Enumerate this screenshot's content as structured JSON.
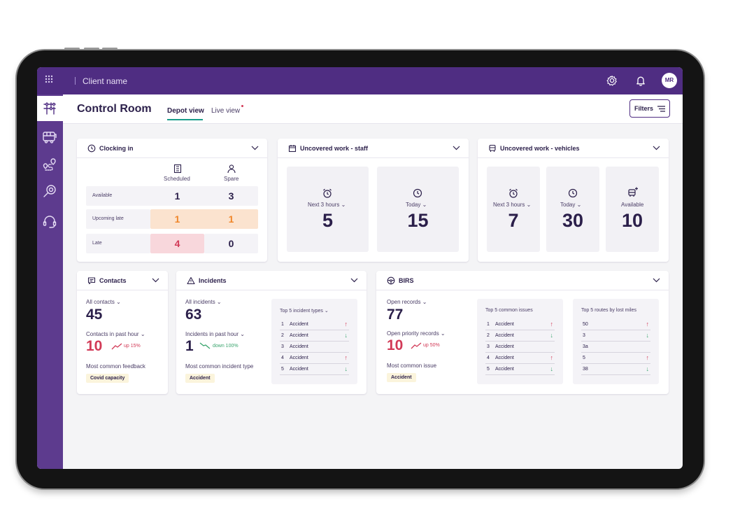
{
  "topbar": {
    "client_name": "Client name",
    "avatar": "MR",
    "icons": [
      "grid-icon",
      "settings-icon",
      "bell-icon"
    ]
  },
  "sidebar": {
    "items": [
      "control-room-icon",
      "bus-icon",
      "route-icon",
      "search-icon",
      "headset-icon"
    ]
  },
  "header": {
    "title": "Control Room",
    "tabs": [
      "Depot view",
      "Live view"
    ],
    "active_tab": "Depot view",
    "filters_label": "Filters"
  },
  "clocking": {
    "title": "Clocking in",
    "col_scheduled": "Scheduled",
    "col_spare": "Spare",
    "rows": [
      {
        "label": "Available",
        "scheduled": "1",
        "spare": "3"
      },
      {
        "label": "Upcoming late",
        "scheduled": "1",
        "spare": "1"
      },
      {
        "label": "Late",
        "scheduled": "4",
        "spare": "0"
      }
    ]
  },
  "staff": {
    "title": "Uncovered work - staff",
    "tiles": [
      {
        "label": "Next 3 hours",
        "value": "5"
      },
      {
        "label": "Today",
        "value": "15"
      }
    ]
  },
  "vehicles": {
    "title": "Uncovered work - vehicles",
    "tiles": [
      {
        "label": "Next 3 hours",
        "value": "7"
      },
      {
        "label": "Today",
        "value": "30"
      },
      {
        "label": "Available",
        "value": "10"
      }
    ]
  },
  "contacts": {
    "title": "Contacts",
    "all_label": "All contacts",
    "all_value": "45",
    "hour_label": "Contacts in past hour",
    "hour_value": "10",
    "trend": "up 15%",
    "feedback_label": "Most common feedback",
    "feedback_tag": "Covid capacity"
  },
  "incidents": {
    "title": "Incidents",
    "all_label": "All incidents",
    "all_value": "63",
    "hour_label": "Incidents in past hour",
    "hour_value": "1",
    "trend": "down 100%",
    "type_label": "Most common incident type",
    "type_tag": "Accident",
    "top_title": "Top 5 incident types",
    "top": [
      {
        "n": "1",
        "label": "Accident",
        "dir": "up"
      },
      {
        "n": "2",
        "label": "Accident",
        "dir": "down"
      },
      {
        "n": "3",
        "label": "Accident",
        "dir": ""
      },
      {
        "n": "4",
        "label": "Accident",
        "dir": "up"
      },
      {
        "n": "5",
        "label": "Accident",
        "dir": "down"
      }
    ]
  },
  "birs": {
    "title": "BIRS",
    "open_label": "Open records",
    "open_value": "77",
    "priority_label": "Open priority records",
    "priority_value": "10",
    "trend": "up 50%",
    "issue_label": "Most common issue",
    "issue_tag": "Accident",
    "issues_title": "Top 5 common issues",
    "issues": [
      {
        "n": "1",
        "label": "Accident",
        "dir": "up"
      },
      {
        "n": "2",
        "label": "Accident",
        "dir": "down"
      },
      {
        "n": "3",
        "label": "Accident",
        "dir": ""
      },
      {
        "n": "4",
        "label": "Accident",
        "dir": "up"
      },
      {
        "n": "5",
        "label": "Accident",
        "dir": "down"
      }
    ],
    "routes_title": "Top 5 routes by lost miles",
    "routes": [
      {
        "label": "50",
        "dir": "up"
      },
      {
        "label": "3",
        "dir": "down"
      },
      {
        "label": "3a",
        "dir": ""
      },
      {
        "label": "5",
        "dir": "up"
      },
      {
        "label": "38",
        "dir": "down"
      }
    ]
  },
  "colors": {
    "brand": "#4f2d82",
    "sidebar": "#5d3b8e",
    "accent_tab": "#1a9c8a",
    "warning_orange": "#f0862a",
    "warning_orange_bg": "#fbe3cf",
    "danger": "#d23a57",
    "danger_bg": "#f8d7dc",
    "success": "#3ba56e",
    "tag_bg": "#fbf4dc"
  }
}
